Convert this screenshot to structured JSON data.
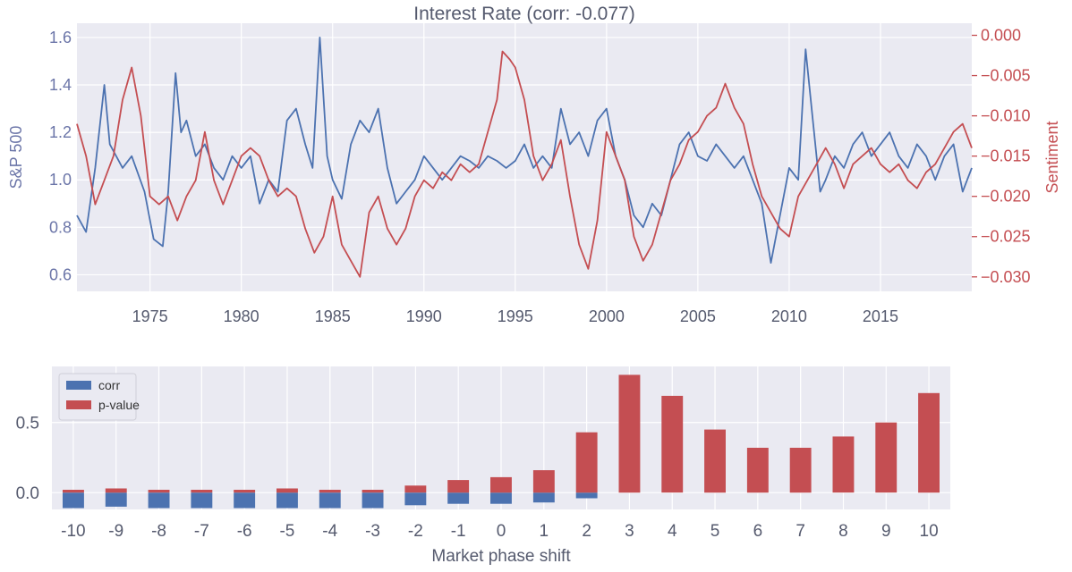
{
  "chart_data": [
    {
      "type": "line",
      "title": "Interest Rate (corr: -0.077)",
      "ylabel_left": "S&P 500",
      "ylabel_right": "Sentiment",
      "xlim": [
        1971.0,
        2020.0
      ],
      "ylim_left": [
        0.53,
        1.66
      ],
      "ylim_right": [
        -0.0318,
        0.0015
      ],
      "xticks": [
        "1975",
        "1980",
        "1985",
        "1990",
        "1995",
        "2000",
        "2005",
        "2010",
        "2015"
      ],
      "yticks_left": [
        "0.6",
        "0.8",
        "1.0",
        "1.2",
        "1.4",
        "1.6"
      ],
      "yticks_right": [
        "-0.030",
        "-0.025",
        "-0.020",
        "-0.015",
        "-0.010",
        "-0.005",
        "0.000"
      ],
      "grid": true,
      "series": [
        {
          "axis": "left",
          "color": "#4c72b0",
          "x": [
            1971.0,
            1971.5,
            1972.0,
            1972.5,
            1972.8,
            1973.5,
            1974.0,
            1974.7,
            1975.2,
            1975.7,
            1976.0,
            1976.4,
            1976.7,
            1977.0,
            1977.5,
            1978.0,
            1978.5,
            1979.0,
            1979.5,
            1980.0,
            1980.5,
            1981.0,
            1981.5,
            1982.0,
            1982.5,
            1983.0,
            1983.5,
            1983.9,
            1984.3,
            1984.7,
            1985.0,
            1985.5,
            1986.0,
            1986.5,
            1987.0,
            1987.5,
            1988.0,
            1988.5,
            1989.0,
            1989.5,
            1990.0,
            1990.5,
            1991.0,
            1991.5,
            1992.0,
            1992.5,
            1993.0,
            1993.5,
            1994.0,
            1994.5,
            1995.0,
            1995.5,
            1996.0,
            1996.5,
            1997.0,
            1997.5,
            1998.0,
            1998.5,
            1999.0,
            1999.5,
            2000.0,
            2000.5,
            2001.0,
            2001.5,
            2002.0,
            2002.5,
            2003.0,
            2003.5,
            2004.0,
            2004.5,
            2005.0,
            2005.5,
            2006.0,
            2006.5,
            2007.0,
            2007.5,
            2008.0,
            2008.5,
            2009.0,
            2009.5,
            2010.0,
            2010.5,
            2010.9,
            2011.3,
            2011.7,
            2012.0,
            2012.5,
            2013.0,
            2013.5,
            2014.0,
            2014.5,
            2015.0,
            2015.5,
            2016.0,
            2016.5,
            2017.0,
            2017.5,
            2018.0,
            2018.5,
            2019.0,
            2019.5,
            2020.0
          ],
          "y": [
            0.85,
            0.78,
            1.05,
            1.4,
            1.15,
            1.05,
            1.1,
            0.95,
            0.75,
            0.72,
            0.95,
            1.45,
            1.2,
            1.25,
            1.1,
            1.15,
            1.05,
            1.0,
            1.1,
            1.05,
            1.1,
            0.9,
            1.0,
            0.95,
            1.25,
            1.3,
            1.15,
            1.05,
            1.6,
            1.1,
            1.0,
            0.92,
            1.15,
            1.25,
            1.2,
            1.3,
            1.05,
            0.9,
            0.95,
            1.0,
            1.1,
            1.05,
            1.0,
            1.05,
            1.1,
            1.08,
            1.05,
            1.1,
            1.08,
            1.05,
            1.08,
            1.15,
            1.05,
            1.1,
            1.05,
            1.3,
            1.15,
            1.2,
            1.1,
            1.25,
            1.3,
            1.1,
            1.0,
            0.85,
            0.8,
            0.9,
            0.85,
            1.0,
            1.15,
            1.2,
            1.1,
            1.08,
            1.15,
            1.1,
            1.05,
            1.1,
            1.0,
            0.9,
            0.65,
            0.85,
            1.05,
            1.0,
            1.55,
            1.25,
            0.95,
            1.0,
            1.1,
            1.05,
            1.15,
            1.2,
            1.1,
            1.15,
            1.2,
            1.1,
            1.05,
            1.15,
            1.1,
            1.0,
            1.1,
            1.15,
            0.95,
            1.05
          ]
        },
        {
          "axis": "right",
          "color": "#c44e52",
          "x": [
            1971.0,
            1971.5,
            1972.0,
            1972.5,
            1973.0,
            1973.5,
            1974.0,
            1974.5,
            1975.0,
            1975.5,
            1976.0,
            1976.5,
            1977.0,
            1977.5,
            1978.0,
            1978.5,
            1979.0,
            1979.5,
            1980.0,
            1980.5,
            1981.0,
            1981.5,
            1982.0,
            1982.5,
            1983.0,
            1983.5,
            1984.0,
            1984.5,
            1985.0,
            1985.5,
            1986.0,
            1986.5,
            1987.0,
            1987.5,
            1988.0,
            1988.5,
            1989.0,
            1989.5,
            1990.0,
            1990.5,
            1991.0,
            1991.5,
            1992.0,
            1992.5,
            1993.0,
            1993.5,
            1994.0,
            1994.3,
            1994.7,
            1995.0,
            1995.5,
            1996.0,
            1996.5,
            1997.0,
            1997.5,
            1998.0,
            1998.5,
            1999.0,
            1999.5,
            2000.0,
            2000.5,
            2001.0,
            2001.5,
            2002.0,
            2002.5,
            2003.0,
            2003.5,
            2004.0,
            2004.5,
            2005.0,
            2005.5,
            2006.0,
            2006.5,
            2007.0,
            2007.5,
            2008.0,
            2008.5,
            2009.0,
            2009.5,
            2010.0,
            2010.5,
            2011.0,
            2011.5,
            2012.0,
            2012.5,
            2013.0,
            2013.5,
            2014.0,
            2014.5,
            2015.0,
            2015.5,
            2016.0,
            2016.5,
            2017.0,
            2017.5,
            2018.0,
            2018.5,
            2019.0,
            2019.5,
            2020.0
          ],
          "y": [
            -0.011,
            -0.015,
            -0.021,
            -0.018,
            -0.015,
            -0.008,
            -0.004,
            -0.01,
            -0.02,
            -0.021,
            -0.02,
            -0.023,
            -0.02,
            -0.018,
            -0.012,
            -0.018,
            -0.021,
            -0.018,
            -0.015,
            -0.014,
            -0.015,
            -0.018,
            -0.02,
            -0.019,
            -0.02,
            -0.024,
            -0.027,
            -0.025,
            -0.02,
            -0.026,
            -0.028,
            -0.03,
            -0.022,
            -0.02,
            -0.024,
            -0.026,
            -0.024,
            -0.02,
            -0.018,
            -0.019,
            -0.017,
            -0.018,
            -0.016,
            -0.017,
            -0.016,
            -0.012,
            -0.008,
            -0.002,
            -0.003,
            -0.004,
            -0.008,
            -0.015,
            -0.018,
            -0.016,
            -0.013,
            -0.02,
            -0.026,
            -0.029,
            -0.023,
            -0.012,
            -0.015,
            -0.018,
            -0.025,
            -0.028,
            -0.026,
            -0.022,
            -0.018,
            -0.016,
            -0.013,
            -0.012,
            -0.01,
            -0.009,
            -0.006,
            -0.009,
            -0.011,
            -0.016,
            -0.02,
            -0.022,
            -0.024,
            -0.025,
            -0.02,
            -0.018,
            -0.016,
            -0.014,
            -0.016,
            -0.019,
            -0.016,
            -0.015,
            -0.014,
            -0.016,
            -0.017,
            -0.016,
            -0.018,
            -0.019,
            -0.017,
            -0.016,
            -0.014,
            -0.012,
            -0.011,
            -0.014
          ]
        }
      ]
    },
    {
      "type": "bar",
      "xlabel": "Market phase shift",
      "categories": [
        "-10",
        "-9",
        "-8",
        "-7",
        "-6",
        "-5",
        "-4",
        "-3",
        "-2",
        "-1",
        "0",
        "1",
        "2",
        "3",
        "4",
        "5",
        "6",
        "7",
        "8",
        "9",
        "10"
      ],
      "ylim": [
        -0.12,
        0.9
      ],
      "yticks": [
        "0.0",
        "0.5"
      ],
      "grid": true,
      "legend": "top-left",
      "series": [
        {
          "name": "corr",
          "color": "#4c72b0",
          "values": [
            -0.11,
            -0.1,
            -0.11,
            -0.11,
            -0.11,
            -0.11,
            -0.11,
            -0.11,
            -0.09,
            -0.08,
            -0.08,
            -0.07,
            -0.04,
            0.0,
            0.0,
            0.0,
            0.0,
            0.0,
            0.0,
            0.0,
            0.0
          ]
        },
        {
          "name": "p-value",
          "color": "#c44e52",
          "values": [
            0.02,
            0.03,
            0.02,
            0.02,
            0.02,
            0.03,
            0.02,
            0.02,
            0.05,
            0.09,
            0.11,
            0.16,
            0.43,
            0.84,
            0.69,
            0.45,
            0.32,
            0.32,
            0.4,
            0.5,
            0.71
          ]
        }
      ]
    }
  ]
}
